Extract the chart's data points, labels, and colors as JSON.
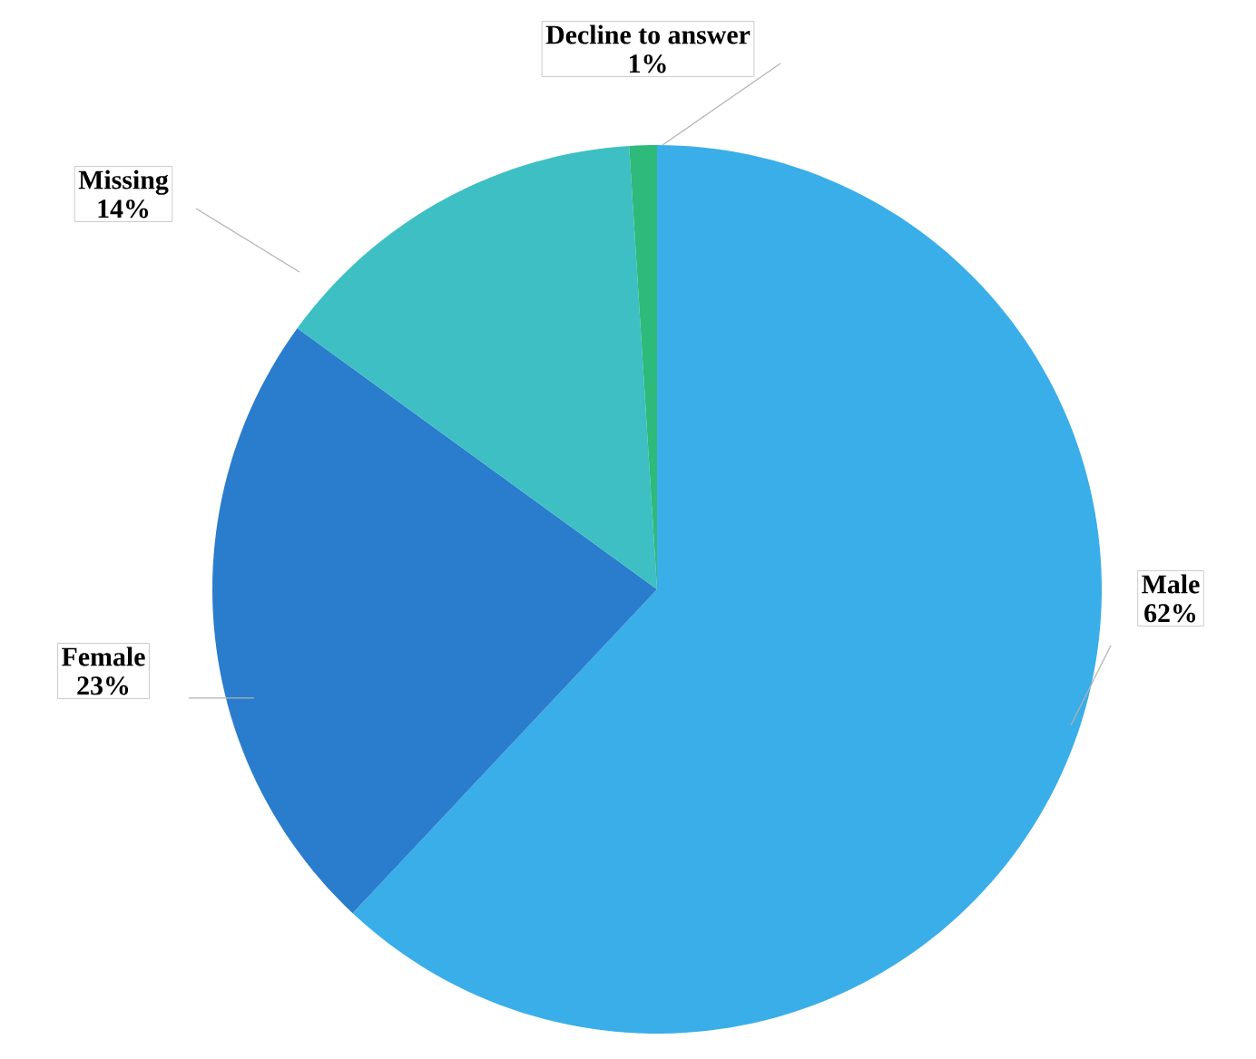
{
  "chart_data": {
    "type": "pie",
    "categories": [
      "Male",
      "Female",
      "Missing",
      "Decline to answer"
    ],
    "values": [
      62,
      23,
      14,
      1
    ],
    "value_labels": [
      "62%",
      "23%",
      "14%",
      "1%"
    ],
    "colors": [
      "#3aaee8",
      "#2a7ccc",
      "#3dbfc4",
      "#2dba7a"
    ]
  }
}
